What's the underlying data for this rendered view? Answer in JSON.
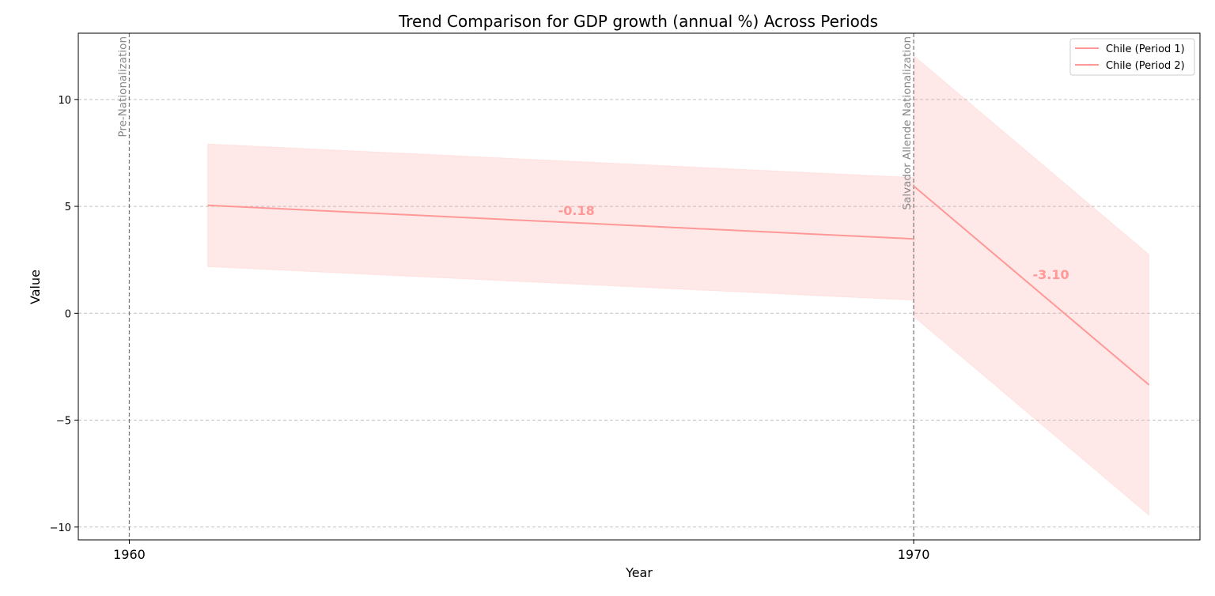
{
  "chart_data": {
    "type": "line",
    "title": "Trend Comparison for GDP growth (annual %) Across Periods",
    "xlabel": "Year",
    "ylabel": "Value",
    "xlim": [
      1959.35,
      1973.65
    ],
    "ylim": [
      -10.6,
      13.1
    ],
    "x_ticks": [
      1960,
      1970
    ],
    "y_ticks": [
      10,
      5,
      0,
      -5,
      -10
    ],
    "y_tick_labels": [
      "10",
      "5",
      "0",
      "−5",
      "−10"
    ],
    "grid": "y-dashed",
    "legend_position": "top-right",
    "series": [
      {
        "name": "Chile (Period 1)",
        "color": "#ff9896",
        "x": [
          1961,
          1970
        ],
        "y": [
          5.05,
          3.48
        ],
        "band_upper": [
          7.92,
          6.35
        ],
        "band_lower": [
          2.18,
          0.61
        ],
        "slope_label": "-0.18",
        "slope_label_pos": [
          1965.7,
          4.6
        ]
      },
      {
        "name": "Chile (Period 2)",
        "color": "#ff9896",
        "x": [
          1970,
          1973
        ],
        "y": [
          5.95,
          -3.35
        ],
        "band_upper": [
          12.05,
          2.75
        ],
        "band_lower": [
          -0.15,
          -9.45
        ],
        "slope_label": "-3.10",
        "slope_label_pos": [
          1971.75,
          1.6
        ]
      }
    ],
    "annotations": [
      {
        "label": "Pre-Nationalization",
        "x": 1960
      },
      {
        "label": "Salvador Allende Nationalization",
        "x": 1970
      }
    ]
  }
}
